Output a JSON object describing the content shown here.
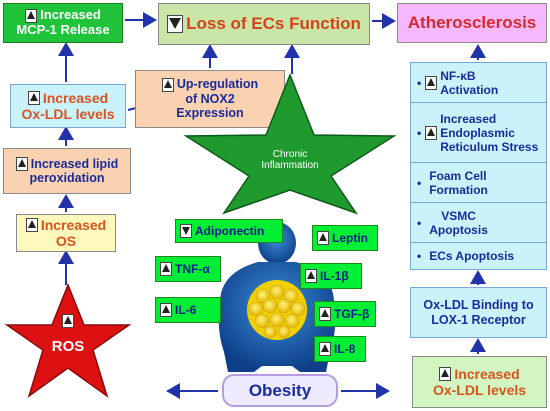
{
  "nodes": {
    "mcp1": {
      "line1": "Increased",
      "line2": "MCP-1 Release"
    },
    "loss_ecs": {
      "label": "Loss of ECs Function"
    },
    "athero": {
      "label": "Atherosclerosis"
    },
    "oxldl_left": {
      "line1": "Increased",
      "line2": "Ox-LDL levels"
    },
    "nox2": {
      "line1": "Up-regulation",
      "line2": "of NOX2",
      "line3": "Expression"
    },
    "lipid": {
      "line1": "Increased lipid",
      "line2": "peroxidation"
    },
    "os": {
      "line1": "Increased",
      "line2": "OS"
    },
    "ros": {
      "label": "ROS"
    },
    "chronic": {
      "line1": "Chronic",
      "line2": "Inflammation"
    },
    "obesity": {
      "label": "Obesity"
    },
    "oxldl_binding": {
      "line1": "Ox-LDL Binding to",
      "line2": "LOX-1 Receptor"
    },
    "oxldl_right": {
      "line1": "Increased",
      "line2": "Ox-LDL levels"
    }
  },
  "athero_list": [
    {
      "line1": "NF-κB",
      "line2": "Activation"
    },
    {
      "line1": "Increased",
      "line2": "Endoplasmic",
      "line3": "Reticulum Stress"
    },
    {
      "line1": "Foam Cell",
      "line2": "Formation"
    },
    {
      "line1": "VSMC",
      "line2": "Apoptosis"
    },
    {
      "line1": "ECs Apoptosis"
    }
  ],
  "adipokines": {
    "adiponectin": "Adiponectin",
    "tnf": "TNF-α",
    "il6": "IL-6",
    "leptin": "Leptin",
    "il1b": "IL-1β",
    "tgfb": "TGF-β",
    "il8": "IL-8"
  },
  "colors": {
    "arrow": "#2233aa",
    "green_box": "#00ee33",
    "star_green": "#1f9a2f",
    "star_red": "#dd1111",
    "orange_text": "#d9541e",
    "navy_text": "#1a2b9c"
  }
}
